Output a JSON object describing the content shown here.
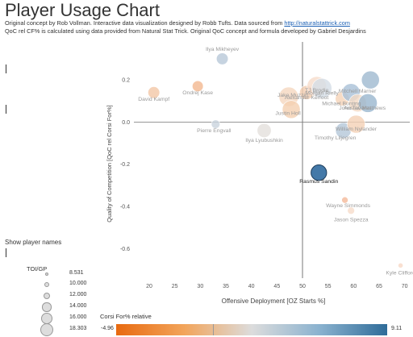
{
  "header": {
    "title": "Player Usage Chart",
    "credit_line1_text": "Original concept by Rob Vollman.  Interactive data visualization designed by Robb Tufts.  Data sourced from ",
    "credit_link": "http://naturalstattrick.com",
    "credit_line2": "QoC rel CF% is calculated using data provided from Natural Stat Trick.  Original QoC concept and formula developed by Gabriel Desjardins"
  },
  "controls": {
    "show_names_label": "Show player names"
  },
  "size_legend": {
    "title": "TOI/GP",
    "values": [
      "8.531",
      "10.000",
      "12.000",
      "14.000",
      "16.000",
      "18.303"
    ]
  },
  "color_legend": {
    "title": "Corsi For% relative",
    "min": "-4.96",
    "max": "9.11",
    "colors": [
      "#e86a10",
      "#f2a45a",
      "#dcdcdc",
      "#8ab2cf",
      "#2f6c99"
    ]
  },
  "chart_data": {
    "type": "scatter",
    "xlabel": "Offensive Deployment [OZ Starts %]",
    "ylabel": "Quality of Competition [QoC rel Corsi For%]",
    "xlim": [
      17,
      71
    ],
    "ylim": [
      -0.74,
      0.38
    ],
    "xticks": [
      20,
      25,
      30,
      35,
      40,
      45,
      50,
      55,
      60,
      65,
      70
    ],
    "yticks": [
      0.2,
      0.0,
      -0.2,
      -0.4,
      -0.6
    ],
    "ytick_labels": [
      "0.2",
      "0.0",
      "-0.2",
      "-0.4",
      "-0.6"
    ],
    "reference_lines": {
      "x": 50,
      "y": 0
    },
    "highlighted": "Rasmus Sandin",
    "points": [
      {
        "name": "Ilya Mikheyev",
        "x": 34.3,
        "y": 0.3,
        "toi": 13.0,
        "color": "#b8c8d8",
        "label": true
      },
      {
        "name": "David Kampf",
        "x": 20.9,
        "y": 0.14,
        "toi": 13.0,
        "color": "#f3c7a6",
        "label": true
      },
      {
        "name": "Ondrej Kase",
        "x": 29.5,
        "y": 0.17,
        "toi": 12.5,
        "color": "#f2b890",
        "label": true
      },
      {
        "name": "Pierre Engvall",
        "x": 33.0,
        "y": -0.01,
        "toi": 11.0,
        "color": "#c9d3dd",
        "label": true
      },
      {
        "name": "Ilya Lyubushkin",
        "x": 42.5,
        "y": -0.04,
        "toi": 14.5,
        "color": "#e4e0dc",
        "label": true
      },
      {
        "name": "Jake Muzzin",
        "x": 47.3,
        "y": 0.12,
        "toi": 18.0,
        "color": "#f5d7bf",
        "label": true
      },
      {
        "name": "Justin Holl",
        "x": 47.8,
        "y": 0.06,
        "toi": 17.0,
        "color": "#f4cfb0",
        "label": true
      },
      {
        "name": "Alexander Kerfoot",
        "x": 50.8,
        "y": 0.14,
        "toi": 14.5,
        "color": "#f3cdb0",
        "label": true
      },
      {
        "name": "TJ Brodie",
        "x": 52.8,
        "y": 0.17,
        "toi": 18.0,
        "color": "#f6dccb",
        "label": true
      },
      {
        "name": "Morgan Rielly",
        "x": 53.8,
        "y": 0.16,
        "toi": 18.3,
        "color": "#d4dde6",
        "label": true
      },
      {
        "name": "Michael Bunting",
        "x": 57.8,
        "y": 0.11,
        "toi": 14.5,
        "color": "#f5d3b8",
        "label": true
      },
      {
        "name": "Mitchell Marner",
        "x": 59.5,
        "y": 0.14,
        "toi": 17.0,
        "color": "#a9c1d7",
        "label": true
      },
      {
        "name": "John Tavares",
        "x": 60.8,
        "y": 0.09,
        "toi": 16.8,
        "color": "#f3d9c4",
        "label": true
      },
      {
        "name": "Auston Matthews",
        "x": 62.8,
        "y": 0.09,
        "toi": 17.5,
        "color": "#9ab6ce",
        "label": true
      },
      {
        "name": "Rasmus Sandin",
        "x": 53.2,
        "y": -0.24,
        "toi": 15.5,
        "color": "#4479a8",
        "label": true
      },
      {
        "name": "Timothy Liljegren",
        "x": 58.0,
        "y": -0.04,
        "toi": 15.5,
        "color": "#b4c7d8",
        "label": true
      },
      {
        "name": "William Nylander",
        "x": 60.5,
        "y": -0.01,
        "toi": 17.0,
        "color": "#f4d1b5",
        "label": true
      },
      {
        "name": "Wayne Simmonds",
        "x": 58.3,
        "y": -0.37,
        "toi": 9.5,
        "color": "#f4b99a",
        "label": true
      },
      {
        "name": "Jason Spezza",
        "x": 59.5,
        "y": -0.42,
        "toi": 10.0,
        "color": "#f6dccb",
        "label": true
      },
      {
        "name": "Kyle Clifford",
        "x": 69.2,
        "y": -0.68,
        "toi": 8.6,
        "color": "#f7d8c6",
        "label": true
      },
      {
        "name": "",
        "x": 63.3,
        "y": 0.2,
        "toi": 17.0,
        "color": "#9fb9d0",
        "label": false
      }
    ]
  }
}
